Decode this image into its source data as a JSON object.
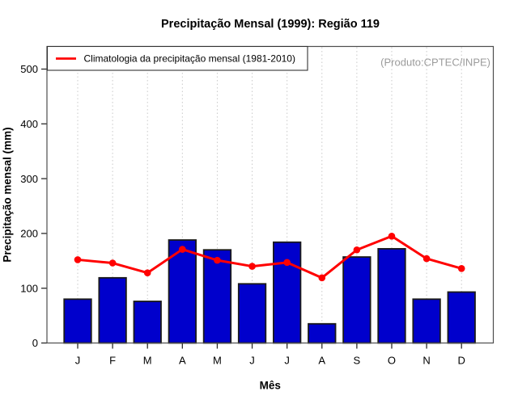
{
  "title": "Precipitação Mensal (1999): Região 119",
  "annotation": "(Produto:CPTEC/INPE)",
  "legend": {
    "label": "Climatologia da precipitação mensal (1981-2010)"
  },
  "colors": {
    "bar": "#0000CC",
    "bar_border": "#1A1A1A",
    "line": "#FF0000",
    "grid": "#C9C9C9",
    "frame": "#4D4D4D",
    "tick": "#2B2B2B",
    "annotation_text": "#9B9B9B",
    "background": "#FFFFFF"
  },
  "chart_data": {
    "type": "bar",
    "title": "Precipitação Mensal (1999): Região 119",
    "xlabel": "Mês",
    "ylabel": "Precipitação mensal (mm)",
    "categories": [
      "J",
      "F",
      "M",
      "A",
      "M",
      "J",
      "J",
      "A",
      "S",
      "O",
      "N",
      "D"
    ],
    "series": [
      {
        "name": "Precipitação mensal (1999)",
        "type": "bar",
        "values": [
          80,
          119,
          76,
          188,
          170,
          108,
          184,
          35,
          157,
          172,
          80,
          93
        ]
      },
      {
        "name": "Climatologia da precipitação mensal (1981-2010)",
        "type": "line",
        "values": [
          152,
          146,
          128,
          171,
          151,
          140,
          147,
          119,
          170,
          195,
          154,
          136
        ]
      }
    ],
    "ylim": [
      0,
      541
    ],
    "yticks": [
      0,
      100,
      200,
      300,
      400,
      500
    ],
    "grid": "vertical-dotted-per-month",
    "legend_position": "top-left"
  }
}
